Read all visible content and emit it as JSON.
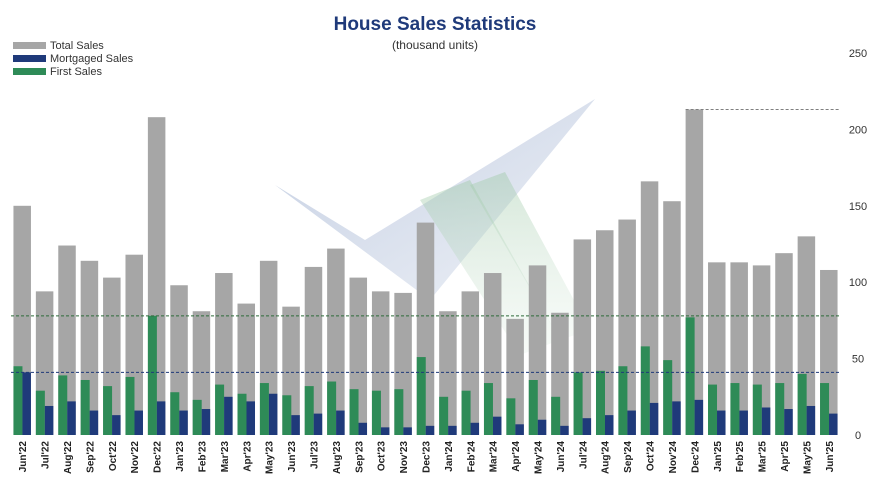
{
  "chart_data": {
    "type": "bar",
    "title": "House Sales Statistics",
    "subtitle": "(thousand units)",
    "ylim": [
      0,
      250
    ],
    "yticks": [
      0,
      50,
      100,
      150,
      200,
      250
    ],
    "y_axis_side": "right",
    "legend_placement": "top-left",
    "grid": false,
    "colors": {
      "total": "#a6a6a6",
      "mortgaged": "#1f3a7a",
      "first": "#2e8b57",
      "title": "#1f3a7a"
    },
    "categories": [
      "Jun'22",
      "Jul'22",
      "Aug'22",
      "Sep'22",
      "Oct'22",
      "Nov'22",
      "Dec'22",
      "Jan'23",
      "Feb'23",
      "Mar'23",
      "Apr'23",
      "May'23",
      "Jun'23",
      "Jul'23",
      "Aug'23",
      "Sep'23",
      "Oct'23",
      "Nov'23",
      "Dec'23",
      "Jan'24",
      "Feb'24",
      "Mar'24",
      "Apr'24",
      "May'24",
      "Jun'24",
      "Jul'24",
      "Aug'24",
      "Sep'24",
      "Oct'24",
      "Nov'24",
      "Dec'24",
      "Jan'25",
      "Feb'25",
      "Mar'25",
      "Apr'25",
      "May'25",
      "Jun'25"
    ],
    "series": [
      {
        "name": "Total Sales",
        "values": [
          150,
          94,
          124,
          114,
          103,
          118,
          208,
          98,
          81,
          106,
          86,
          114,
          84,
          110,
          122,
          103,
          94,
          93,
          139,
          81,
          94,
          106,
          76,
          111,
          80,
          128,
          134,
          141,
          166,
          153,
          213,
          113,
          113,
          111,
          119,
          130,
          108
        ]
      },
      {
        "name": "Mortgaged Sales",
        "values": [
          41,
          19,
          22,
          16,
          13,
          16,
          22,
          16,
          17,
          25,
          22,
          27,
          13,
          14,
          16,
          8,
          5,
          5,
          6,
          6,
          8,
          12,
          7,
          10,
          6,
          11,
          13,
          16,
          21,
          22,
          23,
          16,
          16,
          18,
          17,
          19,
          14
        ]
      },
      {
        "name": "First Sales",
        "values": [
          45,
          29,
          39,
          36,
          32,
          38,
          78,
          28,
          23,
          33,
          27,
          34,
          26,
          32,
          35,
          30,
          29,
          30,
          51,
          25,
          29,
          34,
          24,
          36,
          25,
          41,
          42,
          45,
          58,
          49,
          77,
          33,
          34,
          33,
          34,
          40,
          34
        ]
      }
    ],
    "reference_lines": [
      {
        "value": 213,
        "color": "#7f7f7f",
        "style": "dashed"
      },
      {
        "value": 78,
        "color": "#2e6b3a",
        "style": "dashed"
      },
      {
        "value": 41,
        "color": "#1f3a7a",
        "style": "dashed"
      }
    ]
  }
}
